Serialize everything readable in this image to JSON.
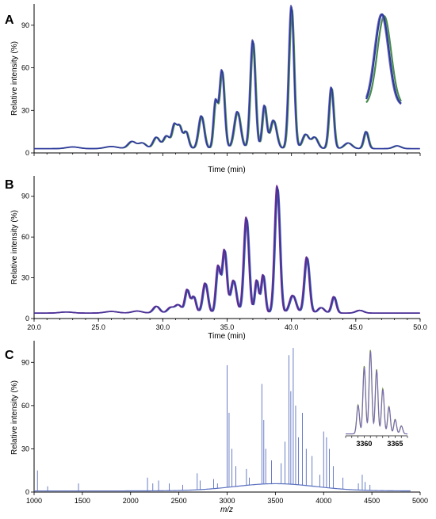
{
  "figure": {
    "background": "#ffffff"
  },
  "chart_data": [
    {
      "panel": "A",
      "type": "line",
      "ylabel": "Relative intensity (%)",
      "xlabel": "Time (min)",
      "xlim": [
        20.0,
        50.0
      ],
      "ylim": [
        0,
        105
      ],
      "x_tick_labels_visible": false,
      "yticks": [
        0,
        30,
        60,
        90
      ],
      "overlay_colors": [
        "#4a8a50",
        "#6e6ab8",
        "#2e3b9e"
      ],
      "baseline": 3,
      "peaks": [
        {
          "x": 23.0,
          "y": 1.2,
          "w": 0.5
        },
        {
          "x": 26.0,
          "y": 1.5,
          "w": 0.5
        },
        {
          "x": 27.6,
          "y": 5,
          "w": 0.3
        },
        {
          "x": 28.4,
          "y": 4,
          "w": 0.3
        },
        {
          "x": 29.5,
          "y": 8,
          "w": 0.25
        },
        {
          "x": 30.3,
          "y": 9,
          "w": 0.25
        },
        {
          "x": 30.9,
          "y": 16,
          "w": 0.18
        },
        {
          "x": 31.3,
          "y": 15,
          "w": 0.18
        },
        {
          "x": 31.8,
          "y": 12,
          "w": 0.2
        },
        {
          "x": 33.0,
          "y": 23,
          "w": 0.22
        },
        {
          "x": 34.1,
          "y": 32,
          "w": 0.16
        },
        {
          "x": 34.6,
          "y": 55,
          "w": 0.2
        },
        {
          "x": 35.8,
          "y": 26,
          "w": 0.25
        },
        {
          "x": 37.0,
          "y": 76,
          "w": 0.2
        },
        {
          "x": 37.9,
          "y": 30,
          "w": 0.17
        },
        {
          "x": 38.6,
          "y": 20,
          "w": 0.25
        },
        {
          "x": 40.0,
          "y": 100,
          "w": 0.2
        },
        {
          "x": 41.1,
          "y": 10,
          "w": 0.25
        },
        {
          "x": 41.8,
          "y": 8,
          "w": 0.25
        },
        {
          "x": 43.1,
          "y": 43,
          "w": 0.18
        },
        {
          "x": 44.4,
          "y": 4,
          "w": 0.3
        },
        {
          "x": 45.8,
          "y": 12,
          "w": 0.18
        },
        {
          "x": 48.2,
          "y": 2,
          "w": 0.3
        }
      ]
    },
    {
      "panel": "B",
      "type": "line",
      "ylabel": "Relative intensity (%)",
      "xlabel": "Time (min)",
      "xlim": [
        20.0,
        50.0
      ],
      "ylim": [
        0,
        105
      ],
      "xticks": [
        "20.0",
        "25.0",
        "30.0",
        "35.0",
        "40.0",
        "45.0",
        "50.0"
      ],
      "yticks": [
        0,
        30,
        60,
        90
      ],
      "overlay_colors": [
        "#3a5fb0",
        "#8a3a9e",
        "#4a2f95"
      ],
      "baseline": 4,
      "peaks": [
        {
          "x": 22.5,
          "y": 0.8,
          "w": 0.5
        },
        {
          "x": 26.0,
          "y": 1.2,
          "w": 0.5
        },
        {
          "x": 28.0,
          "y": 1.5,
          "w": 0.4
        },
        {
          "x": 29.5,
          "y": 5,
          "w": 0.25
        },
        {
          "x": 30.6,
          "y": 4,
          "w": 0.25
        },
        {
          "x": 31.2,
          "y": 6,
          "w": 0.25
        },
        {
          "x": 31.9,
          "y": 17,
          "w": 0.18
        },
        {
          "x": 32.4,
          "y": 12,
          "w": 0.18
        },
        {
          "x": 33.3,
          "y": 22,
          "w": 0.2
        },
        {
          "x": 34.3,
          "y": 34,
          "w": 0.17
        },
        {
          "x": 34.8,
          "y": 46,
          "w": 0.18
        },
        {
          "x": 35.5,
          "y": 24,
          "w": 0.22
        },
        {
          "x": 36.5,
          "y": 70,
          "w": 0.2
        },
        {
          "x": 37.3,
          "y": 24,
          "w": 0.15
        },
        {
          "x": 37.8,
          "y": 28,
          "w": 0.16
        },
        {
          "x": 38.9,
          "y": 93,
          "w": 0.2
        },
        {
          "x": 40.1,
          "y": 13,
          "w": 0.25
        },
        {
          "x": 41.2,
          "y": 41,
          "w": 0.2
        },
        {
          "x": 42.3,
          "y": 4,
          "w": 0.25
        },
        {
          "x": 43.3,
          "y": 12,
          "w": 0.18
        },
        {
          "x": 45.3,
          "y": 2,
          "w": 0.3
        }
      ]
    },
    {
      "panel": "C",
      "type": "line",
      "ylabel": "Relative intensity (%)",
      "xlabel": "m/z",
      "xlim": [
        1000,
        5000
      ],
      "ylim": [
        0,
        105
      ],
      "xticks": [
        "1000",
        "1500",
        "2000",
        "2500",
        "3000",
        "3500",
        "4000",
        "4500",
        "5000"
      ],
      "yticks": [
        0,
        30,
        60,
        90
      ],
      "line_color": "#5a70c0",
      "peaks": [
        {
          "x": 1035,
          "y": 15
        },
        {
          "x": 1140,
          "y": 4
        },
        {
          "x": 1460,
          "y": 6
        },
        {
          "x": 2175,
          "y": 10
        },
        {
          "x": 2230,
          "y": 6
        },
        {
          "x": 2290,
          "y": 8
        },
        {
          "x": 2400,
          "y": 6
        },
        {
          "x": 2540,
          "y": 5
        },
        {
          "x": 2690,
          "y": 13
        },
        {
          "x": 2720,
          "y": 8
        },
        {
          "x": 2860,
          "y": 9
        },
        {
          "x": 2900,
          "y": 6
        },
        {
          "x": 3000,
          "y": 88
        },
        {
          "x": 3020,
          "y": 55
        },
        {
          "x": 3050,
          "y": 30
        },
        {
          "x": 3090,
          "y": 18
        },
        {
          "x": 3200,
          "y": 16
        },
        {
          "x": 3230,
          "y": 10
        },
        {
          "x": 3360,
          "y": 75
        },
        {
          "x": 3380,
          "y": 50
        },
        {
          "x": 3400,
          "y": 30
        },
        {
          "x": 3460,
          "y": 22
        },
        {
          "x": 3560,
          "y": 20
        },
        {
          "x": 3600,
          "y": 35
        },
        {
          "x": 3640,
          "y": 95
        },
        {
          "x": 3660,
          "y": 70
        },
        {
          "x": 3685,
          "y": 100
        },
        {
          "x": 3710,
          "y": 60
        },
        {
          "x": 3740,
          "y": 38
        },
        {
          "x": 3780,
          "y": 55
        },
        {
          "x": 3820,
          "y": 30
        },
        {
          "x": 3880,
          "y": 25
        },
        {
          "x": 3960,
          "y": 12
        },
        {
          "x": 4000,
          "y": 42
        },
        {
          "x": 4030,
          "y": 38
        },
        {
          "x": 4060,
          "y": 30
        },
        {
          "x": 4100,
          "y": 18
        },
        {
          "x": 4200,
          "y": 10
        },
        {
          "x": 4360,
          "y": 6
        },
        {
          "x": 4400,
          "y": 12
        },
        {
          "x": 4430,
          "y": 7
        },
        {
          "x": 4480,
          "y": 5
        }
      ],
      "inset": {
        "xticks": [
          "3360",
          "3365"
        ],
        "x_range": [
          3357,
          3367
        ],
        "line_colors": [
          "#6e8f3e",
          "#7a6ab5"
        ],
        "peaks": [
          {
            "x": 3359.0,
            "y": 18
          },
          {
            "x": 3360.0,
            "y": 42
          },
          {
            "x": 3361.0,
            "y": 52
          },
          {
            "x": 3362.0,
            "y": 40
          },
          {
            "x": 3363.0,
            "y": 28
          },
          {
            "x": 3364.0,
            "y": 17
          },
          {
            "x": 3365.0,
            "y": 9
          },
          {
            "x": 3366.0,
            "y": 5
          }
        ]
      }
    }
  ]
}
